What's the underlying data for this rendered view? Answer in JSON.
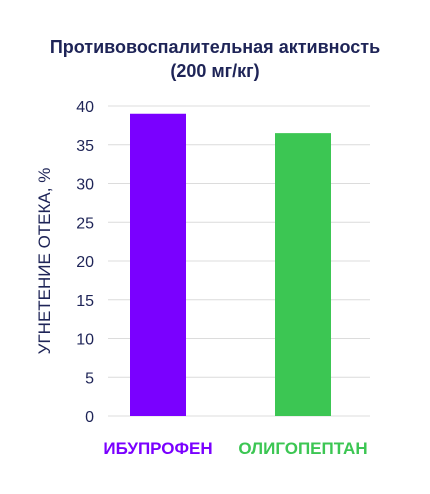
{
  "chart_data": {
    "type": "bar",
    "title": "Противовоспалительная активность",
    "subtitle": "(200 мг/кг)",
    "ylabel": "УГНЕТЕНИЕ ОТЕКА, %",
    "xlabel": "",
    "categories": [
      "ИБУПРОФЕН",
      "ОЛИГОПЕПТАН"
    ],
    "values": [
      39,
      36.5
    ],
    "colors": [
      "#7a00ff",
      "#3cc653"
    ],
    "ylim": [
      0,
      40
    ],
    "yticks": [
      0,
      5,
      10,
      15,
      20,
      25,
      30,
      35,
      40
    ],
    "grid": true
  },
  "colors": {
    "text": "#1e2457",
    "grid": "#dcdcdc"
  }
}
